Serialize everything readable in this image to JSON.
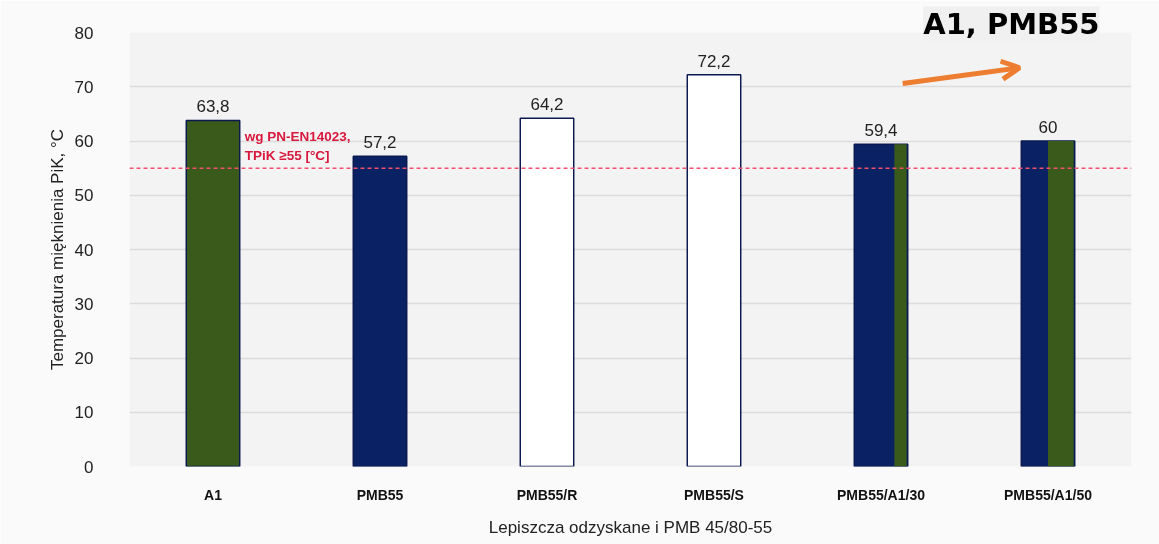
{
  "chart_data": {
    "type": "bar",
    "categories": [
      "A1",
      "PMB55",
      "PMB55/R",
      "PMB55/S",
      "PMB55/A1/30",
      "PMB55/A1/50"
    ],
    "values": [
      63.8,
      57.2,
      64.2,
      72.2,
      59.4,
      60
    ],
    "value_labels": [
      "63,8",
      "57,2",
      "64,2",
      "72,2",
      "59,4",
      "60"
    ],
    "colors": [
      "#3a5a1c",
      "#0a2263",
      "#ffffff",
      "#ffffff",
      [
        "#0a2263",
        "#0a2263",
        "#0a2263",
        "#3a5a1c"
      ],
      [
        "#0a2263",
        "#3a5a1c"
      ]
    ],
    "xlabel": "Lepiszcza odzyskane i PMB 45/80-55",
    "ylabel": "Temperatura mięknienia PiK, °C",
    "ylim": [
      0,
      80
    ],
    "yticks": [
      0,
      10,
      20,
      30,
      40,
      50,
      60,
      70,
      80
    ],
    "grid": "y",
    "ref_lines": [
      {
        "axis": "y",
        "value": 55,
        "label": "wg PN-EN14023, TPiK ≥55 [°C]",
        "color": "#f0506e",
        "line_style": "dashed"
      }
    ],
    "annotations": [
      "A1, PMB55"
    ]
  }
}
